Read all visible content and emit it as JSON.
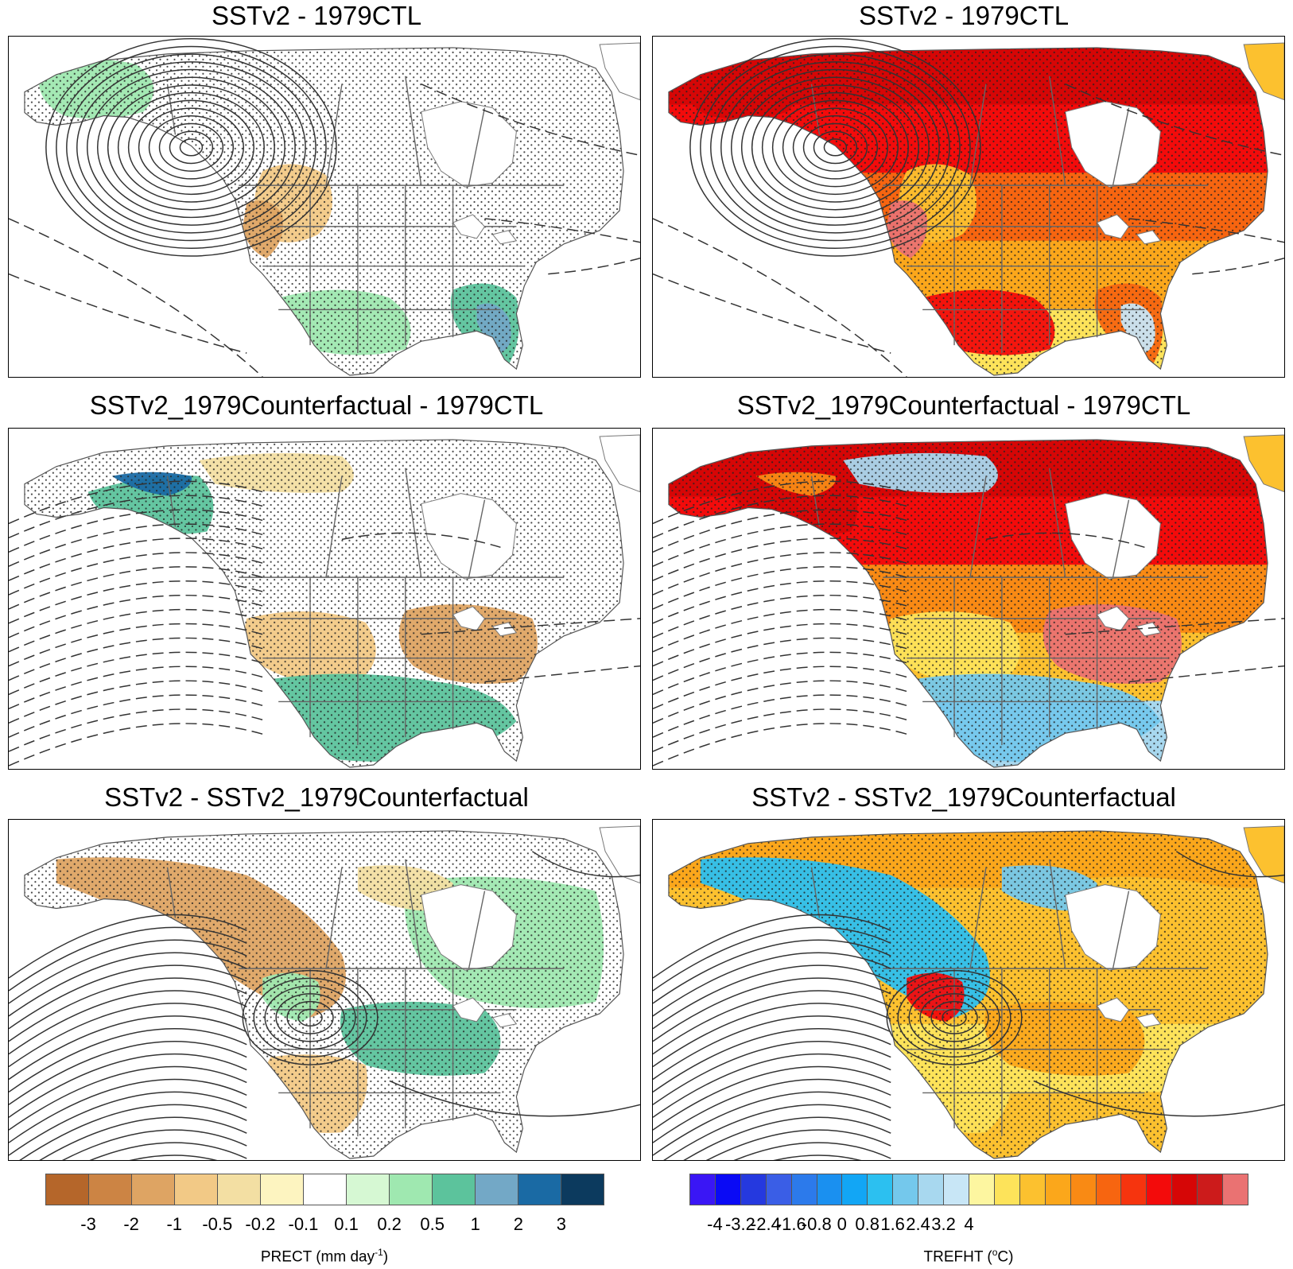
{
  "figure": {
    "panels": [
      {
        "id": "prect-top",
        "title": "SSTv2 - 1979CTL",
        "variable": "PRECT",
        "pattern": "a"
      },
      {
        "id": "trefht-top",
        "title": "SSTv2 - 1979CTL",
        "variable": "TREFHT",
        "pattern": "a"
      },
      {
        "id": "prect-mid",
        "title": "SSTv2_1979Counterfactual - 1979CTL",
        "variable": "PRECT",
        "pattern": "b"
      },
      {
        "id": "trefht-mid",
        "title": "SSTv2_1979Counterfactual - 1979CTL",
        "variable": "TREFHT",
        "pattern": "b"
      },
      {
        "id": "prect-bot",
        "title": "SSTv2 - SSTv2_1979Counterfactual",
        "variable": "PRECT",
        "pattern": "c"
      },
      {
        "id": "trefht-bot",
        "title": "SSTv2 - SSTv2_1979Counterfactual",
        "variable": "TREFHT",
        "pattern": "c"
      }
    ],
    "colorbars": {
      "prect": {
        "title_prefix": "PRECT (mm day",
        "title_exp": "-1",
        "title_suffix": ")",
        "colors": [
          "#b5662a",
          "#cc8444",
          "#dea463",
          "#f2c986",
          "#f3dfa3",
          "#fdf4c0",
          "#ffffff",
          "#d6f8d3",
          "#9fe8b0",
          "#5cc39c",
          "#73a8c6",
          "#1a6aa4",
          "#0c3a5e"
        ],
        "tick_labels": [
          "-3",
          "-2",
          "-1",
          "-0.5",
          "-0.2",
          "-0.1",
          "0.1",
          "0.2",
          "0.5",
          "1",
          "2",
          "3"
        ]
      },
      "trefht": {
        "title_prefix": "TREFHT (",
        "title_exp": "o",
        "title_suffix": "C)",
        "colors": [
          "#3a16f5",
          "#0a0af5",
          "#2539df",
          "#3a5ee6",
          "#2c7aeb",
          "#1a90f0",
          "#12a6f5",
          "#2cc0f0",
          "#74c8ec",
          "#a8d8ef",
          "#c8e6f6",
          "#fdf6a0",
          "#fde35a",
          "#fcc12f",
          "#fba71b",
          "#f98a14",
          "#f76510",
          "#f6340e",
          "#f30b0b",
          "#d60606",
          "#cc1b1b",
          "#ea7272"
        ],
        "tick_labels": [
          "-4",
          "-3.2",
          "-2.4",
          "-1.6",
          "-0.8",
          "0",
          "0.8",
          "1.6",
          "2.4",
          "3.2",
          "4"
        ]
      }
    },
    "fills": {
      "prect": {
        "a": [
          {
            "level": "0.2",
            "color": "#9fe8b0"
          },
          {
            "level": "0.5",
            "color": "#5cc39c"
          },
          {
            "level": "-0.5",
            "color": "#f2c986"
          },
          {
            "level": "-1",
            "color": "#dea463"
          },
          {
            "level": "0.2",
            "color": "#9fe8b0"
          },
          {
            "level": "1",
            "color": "#73a8c6"
          }
        ],
        "b": [
          {
            "level": "0.5",
            "color": "#5cc39c"
          },
          {
            "level": "2",
            "color": "#1a6aa4"
          },
          {
            "level": "-0.5",
            "color": "#f2c986"
          },
          {
            "level": "-1",
            "color": "#dea463"
          },
          {
            "level": "0.5",
            "color": "#5cc39c"
          },
          {
            "level": "-0.2",
            "color": "#f3dfa3"
          }
        ],
        "c": [
          {
            "level": "0.2",
            "color": "#9fe8b0"
          },
          {
            "level": "0.5",
            "color": "#5cc39c"
          },
          {
            "level": "-0.5",
            "color": "#f2c986"
          },
          {
            "level": "-1",
            "color": "#dea463"
          },
          {
            "level": "0.2",
            "color": "#9fe8b0"
          },
          {
            "level": "-0.2",
            "color": "#f3dfa3"
          }
        ]
      },
      "trefht": {
        "a": [
          {
            "level": "3.6",
            "color": "#d60606"
          },
          {
            "level": "2.4",
            "color": "#f76510"
          },
          {
            "level": "1.2",
            "color": "#fcc12f"
          },
          {
            "level": "4",
            "color": "#ea7272"
          },
          {
            "level": "3.2",
            "color": "#f30b0b"
          },
          {
            "level": "-0.4",
            "color": "#c8e6f6"
          }
        ],
        "b": [
          {
            "level": "3.6",
            "color": "#d60606"
          },
          {
            "level": "2.4",
            "color": "#f98a14"
          },
          {
            "level": "0.8",
            "color": "#fde35a"
          },
          {
            "level": "4",
            "color": "#ea7272"
          },
          {
            "level": "-1.2",
            "color": "#74c8ec"
          },
          {
            "level": "-0.8",
            "color": "#a8d8ef"
          }
        ],
        "c": [
          {
            "level": "1.2",
            "color": "#fcc12f"
          },
          {
            "level": "2",
            "color": "#fba71b"
          },
          {
            "level": "0.8",
            "color": "#fde35a"
          },
          {
            "level": "-2",
            "color": "#2cc0f0"
          },
          {
            "level": "3.2",
            "color": "#f30b0b"
          },
          {
            "level": "-1.2",
            "color": "#74c8ec"
          }
        ]
      }
    }
  }
}
